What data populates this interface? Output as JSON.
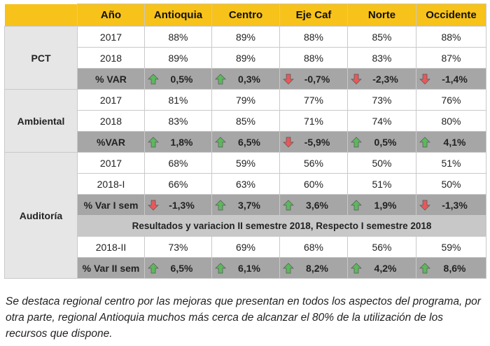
{
  "header": {
    "year_label": "Año",
    "regions": [
      "Antioquia",
      "Centro",
      "Eje Caf",
      "Norte",
      "Occidente"
    ]
  },
  "groups": [
    {
      "name": "PCT",
      "rows": [
        {
          "label": "2017",
          "values": [
            "88%",
            "89%",
            "88%",
            "85%",
            "88%"
          ]
        },
        {
          "label": "2018",
          "values": [
            "89%",
            "89%",
            "88%",
            "83%",
            "87%"
          ]
        }
      ],
      "var": {
        "label": "% VAR",
        "values": [
          "0,5%",
          "0,3%",
          "-0,7%",
          "-2,3%",
          "-1,4%"
        ],
        "dirs": [
          "up",
          "up",
          "down",
          "down",
          "down"
        ]
      }
    },
    {
      "name": "Ambiental",
      "rows": [
        {
          "label": "2017",
          "values": [
            "81%",
            "79%",
            "77%",
            "73%",
            "76%"
          ]
        },
        {
          "label": "2018",
          "values": [
            "83%",
            "85%",
            "71%",
            "74%",
            "80%"
          ]
        }
      ],
      "var": {
        "label": "%VAR",
        "values": [
          "1,8%",
          "6,5%",
          "-5,9%",
          "0,5%",
          "4,1%"
        ],
        "dirs": [
          "up",
          "up",
          "down",
          "up",
          "up"
        ]
      }
    },
    {
      "name": "Auditoría",
      "rows": [
        {
          "label": "2017",
          "values": [
            "68%",
            "59%",
            "56%",
            "50%",
            "51%"
          ]
        },
        {
          "label": "2018-I",
          "values": [
            "66%",
            "63%",
            "60%",
            "51%",
            "50%"
          ]
        }
      ],
      "var": {
        "label": "% Var I sem",
        "values": [
          "-1,3%",
          "3,7%",
          "3,6%",
          "1,9%",
          "-1,3%"
        ],
        "dirs": [
          "down",
          "up",
          "up",
          "up",
          "down"
        ]
      },
      "note": "Resultados y variacion II semestre 2018, Respecto  I semestre  2018",
      "row2": {
        "label": "2018-II",
        "values": [
          "73%",
          "69%",
          "68%",
          "56%",
          "59%"
        ]
      },
      "var2": {
        "label": "% Var II sem",
        "values": [
          "6,5%",
          "6,1%",
          "8,2%",
          "4,2%",
          "8,6%"
        ],
        "dirs": [
          "up",
          "up",
          "up",
          "up",
          "up"
        ]
      }
    }
  ],
  "icons": {
    "up": "arrow-up-icon",
    "down": "arrow-down-icon"
  },
  "colors": {
    "header": "#f7c21a",
    "up": "#5cb85c",
    "down": "#e8585a",
    "var_row": "#a6a6a6"
  },
  "caption": "Se destaca regional centro por las mejoras que presentan en todos los aspectos del programa, por otra parte, regional Antioquia muchos más cerca de alcanzar el 80% de la utilización de los recursos que dispone."
}
